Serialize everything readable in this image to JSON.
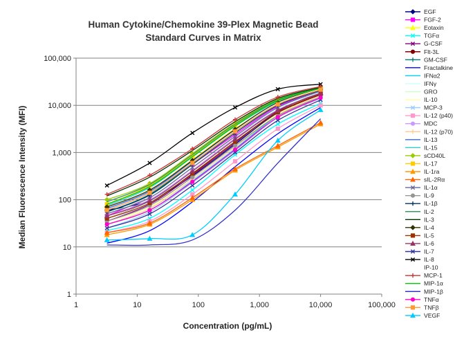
{
  "chart_data": {
    "type": "line",
    "title_lines": [
      "Human Cytokine/Chemokine 39-Plex Magnetic Bead",
      "Standard Curves in Matrix"
    ],
    "xlabel": "Concentration (pg/mL)",
    "ylabel": "Median Fluorescence Intensity (MFI)",
    "x_scale": "log",
    "y_scale": "log",
    "xlim": [
      1,
      100000
    ],
    "ylim": [
      1,
      100000
    ],
    "x_ticks": [
      "1",
      "10",
      "100",
      "1,000",
      "10,000",
      "100,000"
    ],
    "y_ticks": [
      "1",
      "10",
      "100",
      "1,000",
      "10,000",
      "100,000"
    ],
    "grid": "horizontal",
    "legend_position": "right",
    "x": [
      3.2,
      16,
      80,
      400,
      2000,
      10000
    ],
    "series": [
      {
        "name": "EGF",
        "color": "#000080",
        "marker": "diamond",
        "values": [
          60,
          95,
          320,
          1500,
          7000,
          17000
        ]
      },
      {
        "name": "FGF-2",
        "color": "#ff00ff",
        "marker": "square",
        "values": [
          45,
          120,
          550,
          2400,
          9500,
          20000
        ]
      },
      {
        "name": "Eotaxin",
        "color": "#ffff00",
        "marker": "triangle",
        "values": [
          70,
          160,
          700,
          3200,
          11000,
          22000
        ]
      },
      {
        "name": "TGFα",
        "color": "#00ffff",
        "marker": "x",
        "values": [
          22,
          40,
          160,
          900,
          4000,
          11000
        ]
      },
      {
        "name": "G-CSF",
        "color": "#800080",
        "marker": "x",
        "values": [
          35,
          80,
          330,
          1600,
          7500,
          19000
        ]
      },
      {
        "name": "Flt-3L",
        "color": "#800000",
        "marker": "circle",
        "values": [
          40,
          90,
          350,
          1700,
          7000,
          17000
        ]
      },
      {
        "name": "GM-CSF",
        "color": "#008080",
        "marker": "plus",
        "values": [
          55,
          130,
          600,
          2800,
          10500,
          21000
        ]
      },
      {
        "name": "Fractalkine",
        "color": "#0000ff",
        "marker": "none",
        "values": [
          12,
          22,
          90,
          500,
          2500,
          9000
        ]
      },
      {
        "name": "IFNα2",
        "color": "#00ccff",
        "marker": "none",
        "values": [
          30,
          60,
          250,
          1200,
          6000,
          15000
        ]
      },
      {
        "name": "IFNγ",
        "color": "#ccffff",
        "marker": "none",
        "values": [
          40,
          90,
          400,
          2000,
          8500,
          19000
        ]
      },
      {
        "name": "GRO",
        "color": "#ccffcc",
        "marker": "none",
        "values": [
          50,
          120,
          550,
          2600,
          10000,
          21000
        ]
      },
      {
        "name": "IL-10",
        "color": "#ffff99",
        "marker": "none",
        "values": [
          35,
          70,
          300,
          1400,
          6500,
          16000
        ]
      },
      {
        "name": "MCP-3",
        "color": "#99ccff",
        "marker": "x",
        "values": [
          25,
          55,
          230,
          1100,
          5500,
          14000
        ]
      },
      {
        "name": "IL-12 (p40)",
        "color": "#ff99cc",
        "marker": "square",
        "values": [
          20,
          35,
          130,
          650,
          3200,
          10000
        ]
      },
      {
        "name": "MDC",
        "color": "#cc99ff",
        "marker": "circle",
        "values": [
          45,
          100,
          420,
          2000,
          8000,
          18000
        ]
      },
      {
        "name": "IL-12 (p70)",
        "color": "#ffcc99",
        "marker": "plus",
        "values": [
          30,
          65,
          270,
          1300,
          6200,
          16000
        ]
      },
      {
        "name": "IL-13",
        "color": "#3366ff",
        "marker": "none",
        "values": [
          65,
          150,
          650,
          3000,
          11000,
          22000
        ]
      },
      {
        "name": "IL-15",
        "color": "#33cccc",
        "marker": "none",
        "values": [
          75,
          180,
          800,
          3600,
          12000,
          23000
        ]
      },
      {
        "name": "sCD40L",
        "color": "#99cc00",
        "marker": "diamond",
        "values": [
          100,
          220,
          950,
          4200,
          13500,
          24000
        ]
      },
      {
        "name": "IL-17",
        "color": "#ffcc00",
        "marker": "square",
        "values": [
          80,
          200,
          850,
          3800,
          12500,
          23000
        ]
      },
      {
        "name": "IL-1ra",
        "color": "#ff9900",
        "marker": "triangle",
        "values": [
          18,
          30,
          100,
          420,
          1300,
          4000
        ]
      },
      {
        "name": "sIL-2Rα",
        "color": "#ff6600",
        "marker": "triangle",
        "values": [
          20,
          32,
          110,
          450,
          1400,
          4300
        ]
      },
      {
        "name": "IL-1α",
        "color": "#666699",
        "marker": "x",
        "values": [
          50,
          110,
          480,
          2200,
          9000,
          20000
        ]
      },
      {
        "name": "IL-9",
        "color": "#969696",
        "marker": "circle",
        "values": [
          35,
          75,
          300,
          1400,
          6000,
          15000
        ]
      },
      {
        "name": "IL-1β",
        "color": "#003366",
        "marker": "plus",
        "values": [
          55,
          125,
          560,
          2600,
          10000,
          21000
        ]
      },
      {
        "name": "IL-2",
        "color": "#339966",
        "marker": "none",
        "values": [
          90,
          210,
          900,
          4000,
          13000,
          23500
        ]
      },
      {
        "name": "IL-3",
        "color": "#003300",
        "marker": "none",
        "values": [
          120,
          300,
          1100,
          4500,
          14000,
          24000
        ]
      },
      {
        "name": "IL-4",
        "color": "#333300",
        "marker": "diamond",
        "values": [
          70,
          160,
          680,
          3100,
          11500,
          22000
        ]
      },
      {
        "name": "IL-5",
        "color": "#993300",
        "marker": "square",
        "values": [
          40,
          85,
          360,
          1700,
          7200,
          17500
        ]
      },
      {
        "name": "IL-6",
        "color": "#993366",
        "marker": "triangle",
        "values": [
          45,
          95,
          400,
          1900,
          7800,
          18000
        ]
      },
      {
        "name": "IL-7",
        "color": "#333399",
        "marker": "x",
        "values": [
          25,
          50,
          200,
          1000,
          4800,
          13000
        ]
      },
      {
        "name": "IL-8",
        "color": "#000000",
        "marker": "x",
        "values": [
          200,
          600,
          2600,
          9000,
          22000,
          28000
        ]
      },
      {
        "name": "IP-10",
        "color": "#ffffff",
        "marker": "none",
        "values": [
          60,
          140,
          620,
          2900,
          11000,
          22000
        ]
      },
      {
        "name": "MCP-1",
        "color": "#cc3333",
        "marker": "plus",
        "values": [
          130,
          330,
          1200,
          5000,
          15000,
          25000
        ]
      },
      {
        "name": "MIP-1α",
        "color": "#00cc00",
        "marker": "none",
        "values": [
          80,
          190,
          820,
          3700,
          12500,
          23000
        ]
      },
      {
        "name": "MIP-1β",
        "color": "#3333cc",
        "marker": "none",
        "values": [
          11,
          11,
          14,
          60,
          600,
          5200
        ]
      },
      {
        "name": "TNFα",
        "color": "#ff00cc",
        "marker": "circle",
        "values": [
          30,
          60,
          240,
          1150,
          5600,
          14500
        ]
      },
      {
        "name": "TNFβ",
        "color": "#ff9933",
        "marker": "square",
        "values": [
          60,
          140,
          600,
          2800,
          10500,
          21500
        ]
      },
      {
        "name": "VEGF",
        "color": "#00ccff",
        "marker": "triangle",
        "values": [
          14,
          15,
          18,
          130,
          1800,
          8000
        ]
      }
    ]
  }
}
